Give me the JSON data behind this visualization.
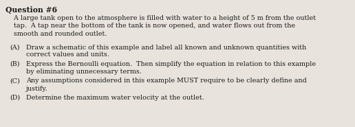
{
  "title": "Question #6",
  "intro_lines": [
    "    A large tank open to the atmosphere is filled with water to a height of 5 m from the outlet",
    "    tap.  A tap near the bottom of the tank is now opened, and water flows out from the",
    "    smooth and rounded outlet."
  ],
  "items": [
    {
      "label": "(A)",
      "line1": "Draw a schematic of this example and label all known and unknown quantities with",
      "line2": "correct values and units."
    },
    {
      "label": "(B)",
      "line1": "Express the Bernoulli equation.  Then simplify the equation in relation to this example",
      "line2": "by eliminating unnecessary terms."
    },
    {
      "label": "(C)",
      "line1": "Any assumptions considered in this example MUST require to be clearly define and",
      "line2": "justify."
    },
    {
      "label": "(D)",
      "line1": "Determine the maximum water velocity at the outlet.",
      "line2": ""
    }
  ],
  "bg_color": "#e8e4dd",
  "text_color": "#1a1a1a",
  "title_fontsize": 7.8,
  "body_fontsize": 6.9,
  "fig_width": 5.16,
  "fig_height": 1.85,
  "dpi": 100
}
